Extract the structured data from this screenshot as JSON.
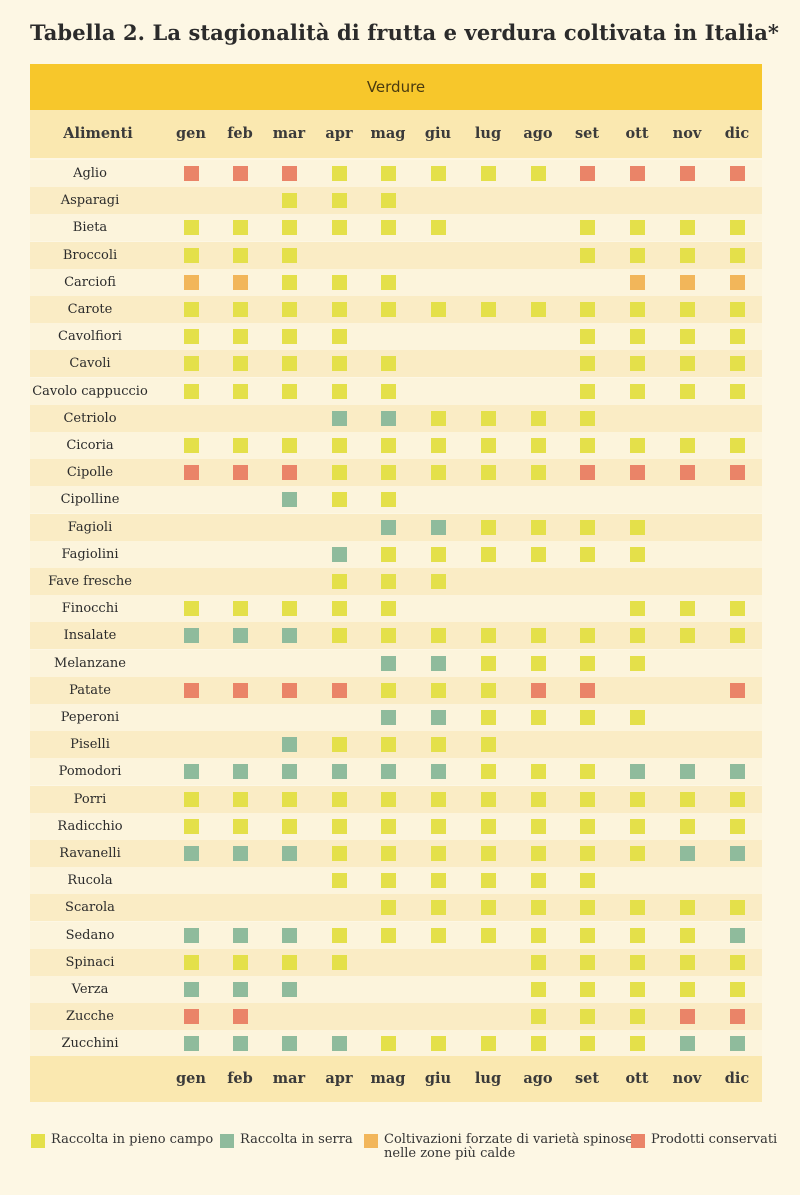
{
  "title": "Tabella 2. La stagionalità di frutta e verdura coltivata in Italia*",
  "category": "Verdure",
  "header_label": "Alimenti",
  "months": [
    "gen",
    "feb",
    "mar",
    "apr",
    "mag",
    "giu",
    "lug",
    "ago",
    "set",
    "ott",
    "nov",
    "dic"
  ],
  "colors": {
    "Y": "#e4e04a",
    "G": "#8fbb9c",
    "O": "#f2b65a",
    "R": "#ea8468"
  },
  "legend": [
    {
      "code": "Y",
      "label": "Raccolta in pieno campo",
      "label2": ""
    },
    {
      "code": "G",
      "label": "Raccolta in serra",
      "label2": ""
    },
    {
      "code": "O",
      "label": "Coltivazioni forzate di varietà spinose",
      "label2": "nelle  zone più calde"
    },
    {
      "code": "R",
      "label": "Prodotti conservati",
      "label2": ""
    }
  ],
  "rows": [
    {
      "name": "Aglio",
      "cells": [
        "R",
        "R",
        "R",
        "Y",
        "Y",
        "Y",
        "Y",
        "Y",
        "R",
        "R",
        "R",
        "R"
      ]
    },
    {
      "name": "Asparagi",
      "cells": [
        "",
        "",
        "Y",
        "Y",
        "Y",
        "",
        "",
        "",
        "",
        "",
        "",
        ""
      ]
    },
    {
      "name": "Bieta",
      "cells": [
        "Y",
        "Y",
        "Y",
        "Y",
        "Y",
        "Y",
        "",
        "",
        "Y",
        "Y",
        "Y",
        "Y"
      ]
    },
    {
      "name": "Broccoli",
      "cells": [
        "Y",
        "Y",
        "Y",
        "",
        "",
        "",
        "",
        "",
        "Y",
        "Y",
        "Y",
        "Y"
      ]
    },
    {
      "name": "Carciofi",
      "cells": [
        "O",
        "O",
        "Y",
        "Y",
        "Y",
        "",
        "",
        "",
        "",
        "O",
        "O",
        "O"
      ]
    },
    {
      "name": "Carote",
      "cells": [
        "Y",
        "Y",
        "Y",
        "Y",
        "Y",
        "Y",
        "Y",
        "Y",
        "Y",
        "Y",
        "Y",
        "Y"
      ]
    },
    {
      "name": "Cavolfiori",
      "cells": [
        "Y",
        "Y",
        "Y",
        "Y",
        "",
        "",
        "",
        "",
        "Y",
        "Y",
        "Y",
        "Y"
      ]
    },
    {
      "name": "Cavoli",
      "cells": [
        "Y",
        "Y",
        "Y",
        "Y",
        "Y",
        "",
        "",
        "",
        "Y",
        "Y",
        "Y",
        "Y"
      ]
    },
    {
      "name": "Cavolo cappuccio",
      "cells": [
        "Y",
        "Y",
        "Y",
        "Y",
        "Y",
        "",
        "",
        "",
        "Y",
        "Y",
        "Y",
        "Y"
      ]
    },
    {
      "name": "Cetriolo",
      "cells": [
        "",
        "",
        "",
        "G",
        "G",
        "Y",
        "Y",
        "Y",
        "Y",
        "",
        "",
        ""
      ]
    },
    {
      "name": "Cicoria",
      "cells": [
        "Y",
        "Y",
        "Y",
        "Y",
        "Y",
        "Y",
        "Y",
        "Y",
        "Y",
        "Y",
        "Y",
        "Y"
      ]
    },
    {
      "name": "Cipolle",
      "cells": [
        "R",
        "R",
        "R",
        "Y",
        "Y",
        "Y",
        "Y",
        "Y",
        "R",
        "R",
        "R",
        "R"
      ]
    },
    {
      "name": "Cipolline",
      "cells": [
        "",
        "",
        "G",
        "Y",
        "Y",
        "",
        "",
        "",
        "",
        "",
        "",
        ""
      ]
    },
    {
      "name": "Fagioli",
      "cells": [
        "",
        "",
        "",
        "",
        "G",
        "G",
        "Y",
        "Y",
        "Y",
        "Y",
        "",
        ""
      ]
    },
    {
      "name": "Fagiolini",
      "cells": [
        "",
        "",
        "",
        "G",
        "Y",
        "Y",
        "Y",
        "Y",
        "Y",
        "Y",
        "",
        ""
      ]
    },
    {
      "name": "Fave fresche",
      "cells": [
        "",
        "",
        "",
        "Y",
        "Y",
        "Y",
        "",
        "",
        "",
        "",
        "",
        ""
      ]
    },
    {
      "name": "Finocchi",
      "cells": [
        "Y",
        "Y",
        "Y",
        "Y",
        "Y",
        "",
        "",
        "",
        "",
        "Y",
        "Y",
        "Y"
      ]
    },
    {
      "name": "Insalate",
      "cells": [
        "G",
        "G",
        "G",
        "Y",
        "Y",
        "Y",
        "Y",
        "Y",
        "Y",
        "Y",
        "Y",
        "Y"
      ]
    },
    {
      "name": "Melanzane",
      "cells": [
        "",
        "",
        "",
        "",
        "G",
        "G",
        "Y",
        "Y",
        "Y",
        "Y",
        "",
        ""
      ]
    },
    {
      "name": "Patate",
      "cells": [
        "R",
        "R",
        "R",
        "R",
        "Y",
        "Y",
        "Y",
        "R",
        "R",
        "",
        "",
        "R"
      ]
    },
    {
      "name": "Peperoni",
      "cells": [
        "",
        "",
        "",
        "",
        "G",
        "G",
        "Y",
        "Y",
        "Y",
        "Y",
        "",
        ""
      ]
    },
    {
      "name": "Piselli",
      "cells": [
        "",
        "",
        "G",
        "Y",
        "Y",
        "Y",
        "Y",
        "",
        "",
        "",
        "",
        ""
      ]
    },
    {
      "name": "Pomodori",
      "cells": [
        "G",
        "G",
        "G",
        "G",
        "G",
        "G",
        "Y",
        "Y",
        "Y",
        "G",
        "G",
        "G"
      ]
    },
    {
      "name": "Porri",
      "cells": [
        "Y",
        "Y",
        "Y",
        "Y",
        "Y",
        "Y",
        "Y",
        "Y",
        "Y",
        "Y",
        "Y",
        "Y"
      ]
    },
    {
      "name": "Radicchio",
      "cells": [
        "Y",
        "Y",
        "Y",
        "Y",
        "Y",
        "Y",
        "Y",
        "Y",
        "Y",
        "Y",
        "Y",
        "Y"
      ]
    },
    {
      "name": "Ravanelli",
      "cells": [
        "G",
        "G",
        "G",
        "Y",
        "Y",
        "Y",
        "Y",
        "Y",
        "Y",
        "Y",
        "G",
        "G"
      ]
    },
    {
      "name": "Rucola",
      "cells": [
        "",
        "",
        "",
        "Y",
        "Y",
        "Y",
        "Y",
        "Y",
        "Y",
        "",
        "",
        ""
      ]
    },
    {
      "name": "Scarola",
      "cells": [
        "",
        "",
        "",
        "",
        "Y",
        "Y",
        "Y",
        "Y",
        "Y",
        "Y",
        "Y",
        "Y"
      ]
    },
    {
      "name": "Sedano",
      "cells": [
        "G",
        "G",
        "G",
        "Y",
        "Y",
        "Y",
        "Y",
        "Y",
        "Y",
        "Y",
        "Y",
        "G"
      ]
    },
    {
      "name": "Spinaci",
      "cells": [
        "Y",
        "Y",
        "Y",
        "Y",
        "",
        "",
        "",
        "Y",
        "Y",
        "Y",
        "Y",
        "Y"
      ]
    },
    {
      "name": "Verza",
      "cells": [
        "G",
        "G",
        "G",
        "",
        "",
        "",
        "",
        "Y",
        "Y",
        "Y",
        "Y",
        "Y"
      ]
    },
    {
      "name": "Zucche",
      "cells": [
        "R",
        "R",
        "",
        "",
        "",
        "",
        "",
        "Y",
        "Y",
        "Y",
        "R",
        "R"
      ]
    },
    {
      "name": "Zucchini",
      "cells": [
        "G",
        "G",
        "G",
        "G",
        "Y",
        "Y",
        "Y",
        "Y",
        "Y",
        "Y",
        "G",
        "G"
      ]
    }
  ]
}
